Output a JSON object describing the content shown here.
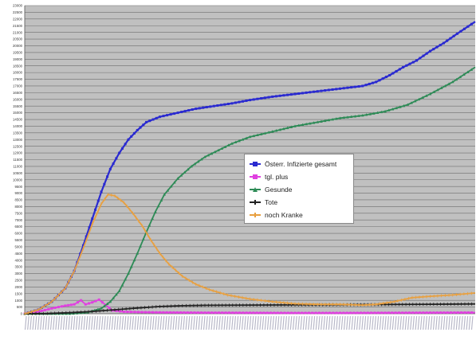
{
  "chart_data": {
    "type": "line",
    "title": "",
    "xlabel": "",
    "ylabel": "",
    "xlim": [
      0,
      1
    ],
    "ylim": [
      0,
      23000
    ],
    "y_ticks": [
      0,
      500,
      1000,
      1500,
      2000,
      2500,
      3000,
      3500,
      4000,
      4500,
      5000,
      5500,
      6000,
      6500,
      7000,
      7500,
      8000,
      8500,
      9000,
      9500,
      10000,
      10500,
      11000,
      11500,
      12000,
      12500,
      13000,
      13500,
      14000,
      14500,
      15000,
      15500,
      16000,
      16500,
      17000,
      17500,
      18000,
      18500,
      19000,
      19500,
      20000,
      20500,
      21000,
      21500,
      22000,
      22500,
      23000
    ],
    "grid": true,
    "legend_position": "center-right",
    "background_color": "#c0c0c0",
    "grid_color": "#6e6e6e",
    "series": [
      {
        "name": "Österr. Infizierte gesamt",
        "color": "#2a2ad0",
        "marker": "square",
        "points": [
          [
            0,
            0
          ],
          [
            0.03,
            300
          ],
          [
            0.06,
            900
          ],
          [
            0.09,
            1900
          ],
          [
            0.11,
            3200
          ],
          [
            0.13,
            5100
          ],
          [
            0.15,
            7100
          ],
          [
            0.17,
            9100
          ],
          [
            0.19,
            10800
          ],
          [
            0.21,
            12000
          ],
          [
            0.23,
            13000
          ],
          [
            0.25,
            13700
          ],
          [
            0.27,
            14300
          ],
          [
            0.3,
            14700
          ],
          [
            0.34,
            15000
          ],
          [
            0.38,
            15300
          ],
          [
            0.42,
            15500
          ],
          [
            0.46,
            15700
          ],
          [
            0.5,
            15950
          ],
          [
            0.55,
            16200
          ],
          [
            0.6,
            16400
          ],
          [
            0.65,
            16600
          ],
          [
            0.7,
            16800
          ],
          [
            0.75,
            17000
          ],
          [
            0.78,
            17300
          ],
          [
            0.81,
            17800
          ],
          [
            0.84,
            18400
          ],
          [
            0.87,
            18900
          ],
          [
            0.9,
            19600
          ],
          [
            0.93,
            20200
          ],
          [
            0.96,
            20900
          ],
          [
            1.0,
            21800
          ]
        ]
      },
      {
        "name": "tgl. plus",
        "color": "#e040e0",
        "marker": "square",
        "points": [
          [
            0,
            0
          ],
          [
            0.03,
            150
          ],
          [
            0.06,
            400
          ],
          [
            0.09,
            600
          ],
          [
            0.11,
            700
          ],
          [
            0.125,
            1000
          ],
          [
            0.135,
            700
          ],
          [
            0.15,
            850
          ],
          [
            0.165,
            1050
          ],
          [
            0.18,
            650
          ],
          [
            0.195,
            250
          ],
          [
            0.22,
            150
          ],
          [
            0.26,
            120
          ],
          [
            0.3,
            100
          ],
          [
            0.4,
            80
          ],
          [
            0.5,
            70
          ],
          [
            0.6,
            60
          ],
          [
            0.7,
            60
          ],
          [
            0.8,
            70
          ],
          [
            0.9,
            80
          ],
          [
            1.0,
            90
          ]
        ]
      },
      {
        "name": "Gesunde",
        "color": "#2e8b57",
        "marker": "triangle",
        "points": [
          [
            0,
            0
          ],
          [
            0.1,
            0
          ],
          [
            0.14,
            100
          ],
          [
            0.17,
            400
          ],
          [
            0.19,
            900
          ],
          [
            0.21,
            1700
          ],
          [
            0.23,
            3000
          ],
          [
            0.25,
            4500
          ],
          [
            0.27,
            6100
          ],
          [
            0.29,
            7600
          ],
          [
            0.31,
            8900
          ],
          [
            0.34,
            10100
          ],
          [
            0.37,
            11000
          ],
          [
            0.4,
            11700
          ],
          [
            0.43,
            12200
          ],
          [
            0.46,
            12700
          ],
          [
            0.5,
            13200
          ],
          [
            0.55,
            13600
          ],
          [
            0.6,
            14000
          ],
          [
            0.65,
            14300
          ],
          [
            0.7,
            14600
          ],
          [
            0.75,
            14800
          ],
          [
            0.8,
            15100
          ],
          [
            0.85,
            15600
          ],
          [
            0.9,
            16400
          ],
          [
            0.95,
            17300
          ],
          [
            1.0,
            18400
          ]
        ]
      },
      {
        "name": "Tote",
        "color": "#222222",
        "marker": "cross",
        "points": [
          [
            0,
            0
          ],
          [
            0.05,
            20
          ],
          [
            0.1,
            80
          ],
          [
            0.15,
            170
          ],
          [
            0.2,
            300
          ],
          [
            0.25,
            430
          ],
          [
            0.3,
            540
          ],
          [
            0.35,
            600
          ],
          [
            0.4,
            630
          ],
          [
            0.5,
            650
          ],
          [
            0.6,
            660
          ],
          [
            0.7,
            670
          ],
          [
            0.8,
            690
          ],
          [
            0.9,
            710
          ],
          [
            1.0,
            730
          ]
        ]
      },
      {
        "name": "noch Kranke",
        "color": "#e8a040",
        "marker": "cross",
        "points": [
          [
            0,
            0
          ],
          [
            0.03,
            300
          ],
          [
            0.06,
            900
          ],
          [
            0.09,
            1900
          ],
          [
            0.11,
            3200
          ],
          [
            0.13,
            4900
          ],
          [
            0.15,
            6700
          ],
          [
            0.17,
            8200
          ],
          [
            0.185,
            8900
          ],
          [
            0.2,
            8800
          ],
          [
            0.22,
            8300
          ],
          [
            0.24,
            7500
          ],
          [
            0.26,
            6600
          ],
          [
            0.28,
            5500
          ],
          [
            0.3,
            4500
          ],
          [
            0.32,
            3700
          ],
          [
            0.35,
            2800
          ],
          [
            0.38,
            2200
          ],
          [
            0.41,
            1800
          ],
          [
            0.45,
            1400
          ],
          [
            0.5,
            1100
          ],
          [
            0.55,
            900
          ],
          [
            0.6,
            750
          ],
          [
            0.65,
            700
          ],
          [
            0.7,
            700
          ],
          [
            0.75,
            650
          ],
          [
            0.78,
            700
          ],
          [
            0.82,
            900
          ],
          [
            0.86,
            1200
          ],
          [
            0.9,
            1300
          ],
          [
            0.95,
            1400
          ],
          [
            1.0,
            1550
          ]
        ]
      }
    ]
  }
}
